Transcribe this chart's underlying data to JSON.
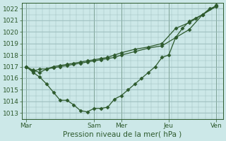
{
  "xlabel": "Pression niveau de la mer( hPa )",
  "background_color": "#cce8e8",
  "grid_color": "#99bbbb",
  "line_color": "#2d5a2d",
  "ylim": [
    1012.5,
    1022.5
  ],
  "yticks": [
    1013,
    1014,
    1015,
    1016,
    1017,
    1018,
    1019,
    1020,
    1021,
    1022
  ],
  "day_labels": [
    "Mar",
    "Sam",
    "Mer",
    "Jeu",
    "Ven"
  ],
  "day_x": [
    0,
    5.0,
    7.0,
    10.5,
    14.0
  ],
  "xlim": [
    -0.3,
    14.5
  ],
  "series": [
    {
      "x": [
        0,
        0.5,
        1.0,
        1.5,
        2.0,
        2.5,
        3.0,
        3.5,
        4.0,
        4.5,
        5.0,
        5.5,
        6.0,
        6.5,
        7.0,
        8.0,
        9.0,
        10.0,
        11.0,
        12.0,
        13.0,
        14.0
      ],
      "y": [
        1017.0,
        1016.6,
        1016.8,
        1016.8,
        1016.9,
        1017.0,
        1017.1,
        1017.2,
        1017.3,
        1017.4,
        1017.5,
        1017.6,
        1017.7,
        1017.8,
        1018.0,
        1018.3,
        1018.6,
        1018.8,
        1019.5,
        1020.2,
        1021.5,
        1022.2
      ]
    },
    {
      "x": [
        0,
        0.5,
        1.0,
        1.5,
        2.0,
        2.5,
        3.0,
        3.5,
        4.0,
        4.5,
        5.0,
        5.5,
        6.0,
        6.5,
        7.0,
        8.0,
        9.0,
        10.0,
        11.0,
        12.0,
        13.0,
        14.0
      ],
      "y": [
        1017.0,
        1016.7,
        1016.5,
        1016.8,
        1017.0,
        1017.1,
        1017.2,
        1017.3,
        1017.4,
        1017.5,
        1017.6,
        1017.7,
        1017.8,
        1018.0,
        1018.2,
        1018.5,
        1018.7,
        1019.0,
        1020.3,
        1020.8,
        1021.5,
        1022.3
      ]
    },
    {
      "x": [
        0,
        0.5,
        1.0,
        1.5,
        2.0,
        2.5,
        3.0,
        3.5,
        4.0,
        4.5,
        5.0,
        5.5,
        6.0,
        6.5,
        7.0,
        7.5,
        8.0,
        8.5,
        9.0,
        9.5,
        10.0,
        10.5,
        11.0,
        11.5,
        12.0,
        12.5,
        13.0,
        13.5,
        14.0
      ],
      "y": [
        1017.0,
        1016.5,
        1016.1,
        1015.5,
        1014.8,
        1014.1,
        1014.1,
        1013.7,
        1013.2,
        1013.1,
        1013.4,
        1013.4,
        1013.5,
        1014.2,
        1014.5,
        1015.0,
        1015.5,
        1016.0,
        1016.5,
        1017.0,
        1017.8,
        1018.0,
        1019.5,
        1020.3,
        1020.9,
        1021.2,
        1021.5,
        1022.0,
        1022.2
      ]
    }
  ],
  "marker": "D",
  "marker_size": 2.5,
  "line_width": 0.9,
  "font_size": 6.5,
  "label_fontsize": 7.5
}
